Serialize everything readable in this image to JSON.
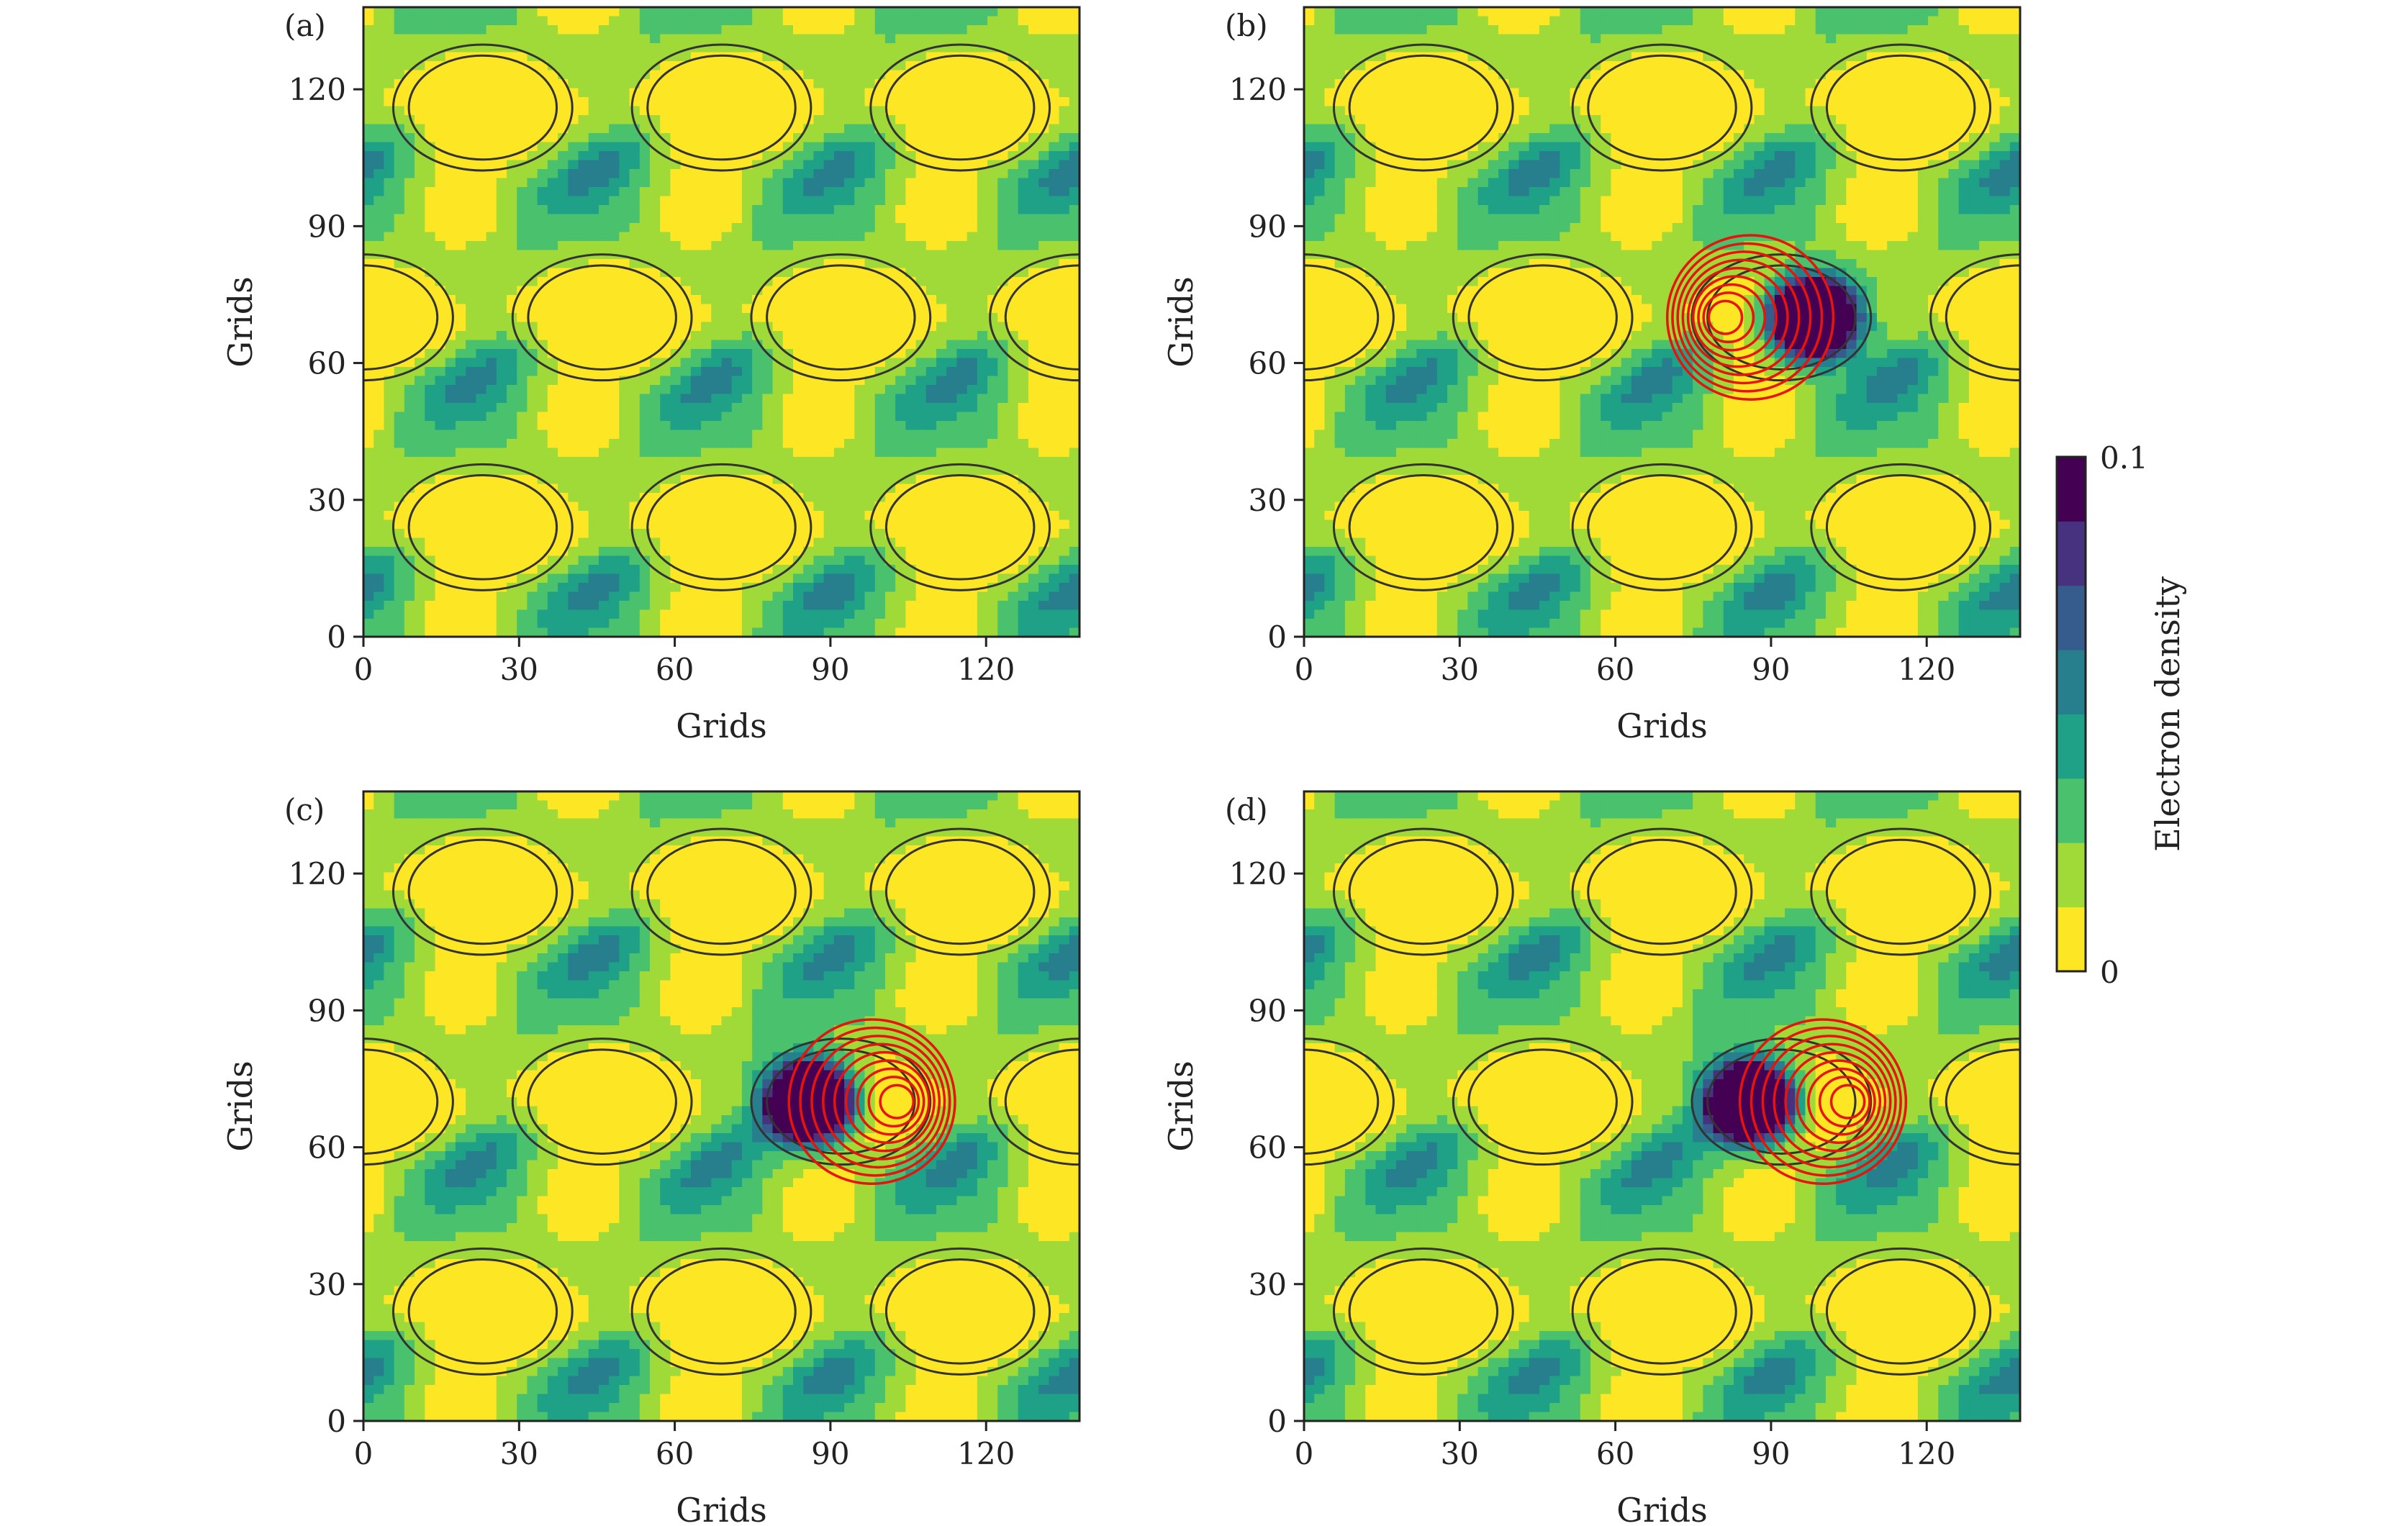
{
  "chart_data": {
    "type": "heatmap",
    "panels": [
      {
        "label": "(a)",
        "xlabel": "Grids",
        "ylabel": "Grids",
        "xlim": [
          0,
          138
        ],
        "ylim": [
          0,
          138
        ],
        "xticks": [
          0,
          30,
          60,
          90,
          120
        ],
        "yticks": [
          0,
          30,
          60,
          90,
          120
        ],
        "vacancy": null,
        "red_contour_center": null,
        "red_contour_direction": null
      },
      {
        "label": "(b)",
        "xlabel": "Grids",
        "ylabel": "Grids",
        "xlim": [
          0,
          138
        ],
        "ylim": [
          0,
          138
        ],
        "xticks": [
          0,
          30,
          60,
          90,
          120
        ],
        "yticks": [
          0,
          30,
          60,
          90,
          120
        ],
        "vacancy": [
          98,
          70
        ],
        "red_contour_center": [
          86,
          70
        ],
        "red_contour_direction": "left"
      },
      {
        "label": "(c)",
        "xlabel": "Grids",
        "ylabel": "Grids",
        "xlim": [
          0,
          138
        ],
        "ylim": [
          0,
          138
        ],
        "xticks": [
          0,
          30,
          60,
          90,
          120
        ],
        "yticks": [
          0,
          30,
          60,
          90,
          120
        ],
        "vacancy": [
          86,
          70
        ],
        "red_contour_center": [
          98,
          70
        ],
        "red_contour_direction": "right"
      },
      {
        "label": "(d)",
        "xlabel": "Grids",
        "ylabel": "Grids",
        "xlim": [
          0,
          138
        ],
        "ylim": [
          0,
          138
        ],
        "xticks": [
          0,
          30,
          60,
          90,
          120
        ],
        "yticks": [
          0,
          30,
          60,
          90,
          120
        ],
        "vacancy": [
          86,
          70
        ],
        "red_contour_center": [
          100,
          70
        ],
        "red_contour_direction": "right"
      }
    ],
    "lattice": {
      "large_site_period": [
        46,
        46
      ],
      "large_site_origin": [
        23,
        24
      ],
      "small_site_offset": [
        19,
        23
      ],
      "large_radius": [
        15,
        12
      ],
      "small_radius": [
        7,
        6
      ]
    },
    "colorbar": {
      "label": "Electron density",
      "min_label": "0",
      "max_label": "0.1",
      "colormap": "viridis_r",
      "levels": 8,
      "colors": [
        "#fde725",
        "#a0da39",
        "#4ac16d",
        "#1fa187",
        "#277f8e",
        "#365c8d",
        "#46327e",
        "#440154"
      ]
    },
    "red_contour_color": "#e8140c",
    "line_contour_color": "#333333"
  }
}
